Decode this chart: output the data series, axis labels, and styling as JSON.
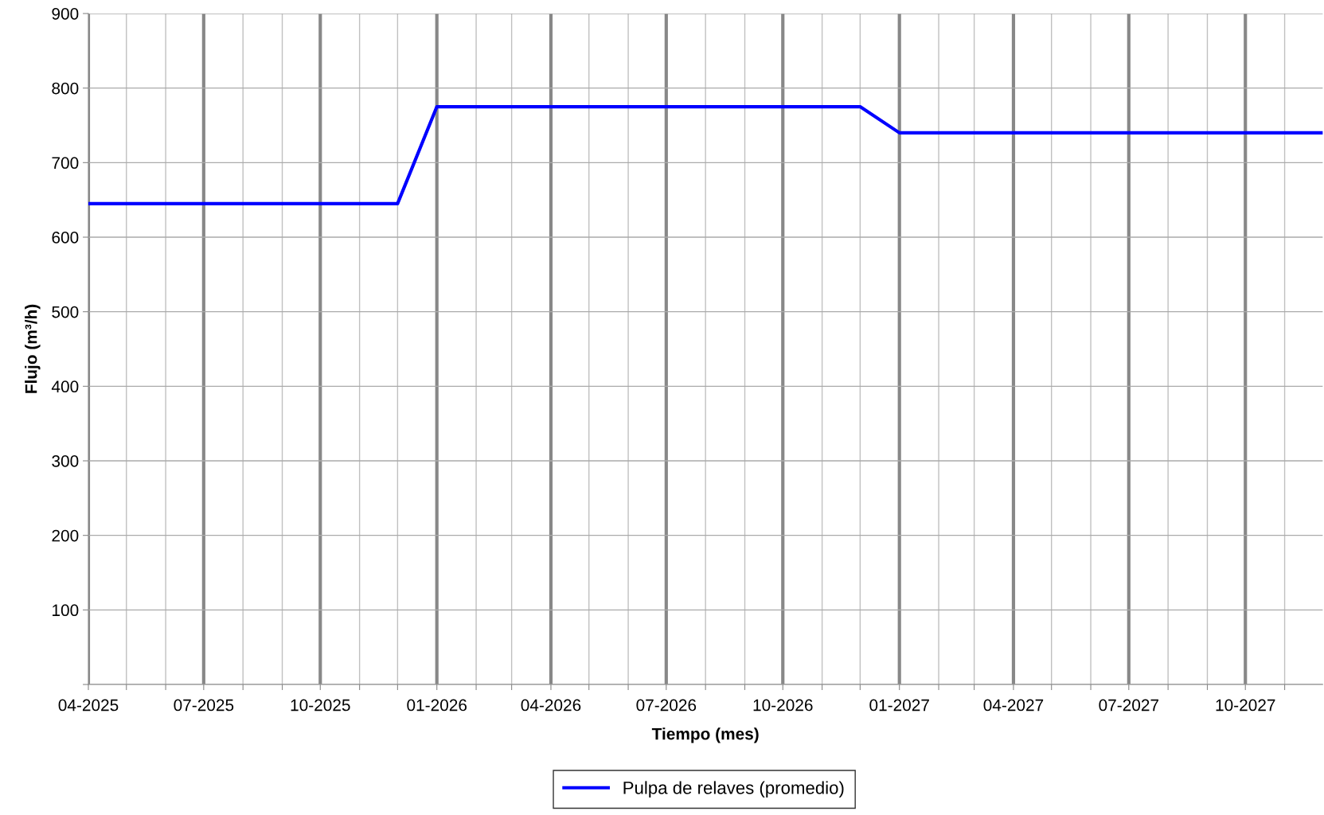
{
  "chart_data": {
    "type": "line",
    "xlabel": "Tiempo (mes)",
    "ylabel": "Flujo (m³/h)",
    "series": [
      {
        "name": "Pulpa de relaves (promedio)",
        "color": "#0000ff",
        "x": [
          "2025-04",
          "2025-12",
          "2026-01",
          "2026-12",
          "2027-01",
          "2027-12"
        ],
        "values": [
          645,
          645,
          775,
          775,
          740,
          740
        ]
      }
    ],
    "xlim": [
      "2025-04",
      "2027-12"
    ],
    "xticks": [
      {
        "value": "2025-04",
        "label": "04-2025"
      },
      {
        "value": "2025-05",
        "label": null
      },
      {
        "value": "2025-06",
        "label": null
      },
      {
        "value": "2025-07",
        "label": "07-2025"
      },
      {
        "value": "2025-08",
        "label": null
      },
      {
        "value": "2025-09",
        "label": null
      },
      {
        "value": "2025-10",
        "label": "10-2025"
      },
      {
        "value": "2025-11",
        "label": null
      },
      {
        "value": "2025-12",
        "label": null
      },
      {
        "value": "2026-01",
        "label": "01-2026"
      },
      {
        "value": "2026-02",
        "label": null
      },
      {
        "value": "2026-03",
        "label": null
      },
      {
        "value": "2026-04",
        "label": "04-2026"
      },
      {
        "value": "2026-05",
        "label": null
      },
      {
        "value": "2026-06",
        "label": null
      },
      {
        "value": "2026-07",
        "label": "07-2026"
      },
      {
        "value": "2026-08",
        "label": null
      },
      {
        "value": "2026-09",
        "label": null
      },
      {
        "value": "2026-10",
        "label": "10-2026"
      },
      {
        "value": "2026-11",
        "label": null
      },
      {
        "value": "2026-12",
        "label": null
      },
      {
        "value": "2027-01",
        "label": "01-2027"
      },
      {
        "value": "2027-02",
        "label": null
      },
      {
        "value": "2027-03",
        "label": null
      },
      {
        "value": "2027-04",
        "label": "04-2027"
      },
      {
        "value": "2027-05",
        "label": null
      },
      {
        "value": "2027-06",
        "label": null
      },
      {
        "value": "2027-07",
        "label": "07-2027"
      },
      {
        "value": "2027-08",
        "label": null
      },
      {
        "value": "2027-09",
        "label": null
      },
      {
        "value": "2027-10",
        "label": "10-2027"
      },
      {
        "value": "2027-11",
        "label": null
      }
    ],
    "ylim": [
      0,
      900
    ],
    "yticks": [
      {
        "value": 0,
        "label": null
      },
      100,
      200,
      300,
      400,
      500,
      600,
      700,
      800,
      900
    ],
    "grid": true,
    "legend": "bottom",
    "line_style": "solid",
    "marker": "none"
  }
}
